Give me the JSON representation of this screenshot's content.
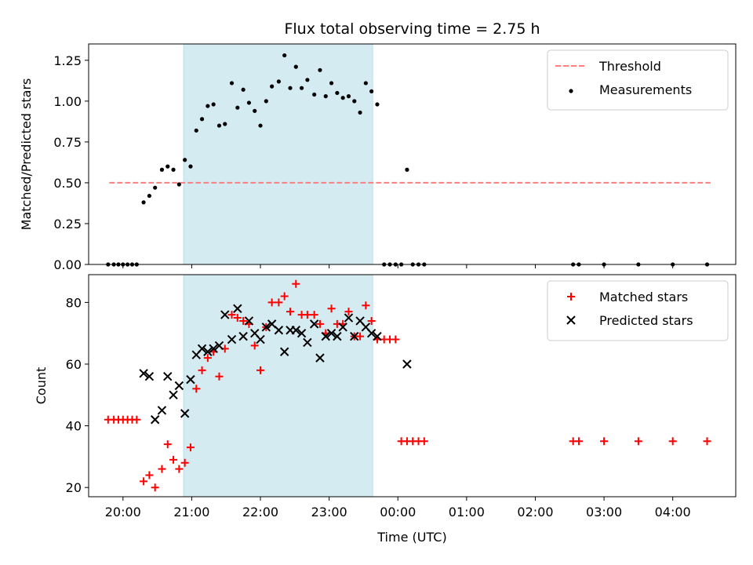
{
  "chart_data": [
    {
      "type": "scatter",
      "title": "Flux total observing time = 2.75 h",
      "ylabel": "Matched/Predicted stars",
      "xlabel": "",
      "xlim": [
        "19:30",
        "04:55"
      ],
      "ylim": [
        0,
        1.35
      ],
      "yticks": [
        "0.00",
        "0.25",
        "0.50",
        "0.75",
        "1.00",
        "1.25"
      ],
      "legend_position": "top-right",
      "shaded_interval": {
        "start": "20:53",
        "end": "23:38",
        "color": "#d4ebf2"
      },
      "threshold": {
        "name": "Threshold",
        "value": 0.5,
        "x_range": [
          "19:48",
          "04:33"
        ],
        "color": "#ff7f7f"
      },
      "series": [
        {
          "name": "Measurements",
          "marker": "dot",
          "color": "#000000",
          "points": [
            [
              "19:47",
              0
            ],
            [
              "19:52",
              0
            ],
            [
              "19:56",
              0
            ],
            [
              "20:00",
              0
            ],
            [
              "20:04",
              0
            ],
            [
              "20:08",
              0
            ],
            [
              "20:12",
              0
            ],
            [
              "20:18",
              0.38
            ],
            [
              "20:23",
              0.42
            ],
            [
              "20:28",
              0.47
            ],
            [
              "20:34",
              0.58
            ],
            [
              "20:39",
              0.6
            ],
            [
              "20:44",
              0.58
            ],
            [
              "20:49",
              0.49
            ],
            [
              "20:54",
              0.64
            ],
            [
              "20:59",
              0.6
            ],
            [
              "21:04",
              0.82
            ],
            [
              "21:09",
              0.89
            ],
            [
              "21:14",
              0.97
            ],
            [
              "21:19",
              0.98
            ],
            [
              "21:24",
              0.85
            ],
            [
              "21:29",
              0.86
            ],
            [
              "21:35",
              1.11
            ],
            [
              "21:40",
              0.96
            ],
            [
              "21:45",
              1.07
            ],
            [
              "21:50",
              0.99
            ],
            [
              "21:55",
              0.94
            ],
            [
              "22:00",
              0.85
            ],
            [
              "22:05",
              1.0
            ],
            [
              "22:10",
              1.09
            ],
            [
              "22:16",
              1.12
            ],
            [
              "22:21",
              1.28
            ],
            [
              "22:26",
              1.08
            ],
            [
              "22:31",
              1.21
            ],
            [
              "22:36",
              1.08
            ],
            [
              "22:41",
              1.13
            ],
            [
              "22:47",
              1.04
            ],
            [
              "22:52",
              1.19
            ],
            [
              "22:57",
              1.03
            ],
            [
              "23:02",
              1.11
            ],
            [
              "23:07",
              1.05
            ],
            [
              "23:12",
              1.02
            ],
            [
              "23:17",
              1.03
            ],
            [
              "23:22",
              1.0
            ],
            [
              "23:27",
              0.93
            ],
            [
              "23:32",
              1.11
            ],
            [
              "23:37",
              1.06
            ],
            [
              "23:42",
              0.98
            ],
            [
              "23:48",
              0
            ],
            [
              "23:53",
              0
            ],
            [
              "23:58",
              0
            ],
            [
              "00:03",
              0
            ],
            [
              "00:08",
              0.58
            ],
            [
              "00:13",
              0
            ],
            [
              "00:18",
              0
            ],
            [
              "00:23",
              0
            ],
            [
              "02:33",
              0
            ],
            [
              "02:38",
              0
            ],
            [
              "03:00",
              0
            ],
            [
              "03:30",
              0
            ],
            [
              "04:00",
              0
            ],
            [
              "04:30",
              0
            ]
          ]
        }
      ]
    },
    {
      "type": "scatter",
      "title": "",
      "ylabel": "Count",
      "xlabel": "Time (UTC)",
      "xlim": [
        "19:30",
        "04:55"
      ],
      "ylim": [
        17,
        89
      ],
      "yticks": [
        "20",
        "40",
        "60",
        "80"
      ],
      "xticks": [
        "20:00",
        "21:00",
        "22:00",
        "23:00",
        "00:00",
        "01:00",
        "02:00",
        "03:00",
        "04:00"
      ],
      "legend_position": "top-right",
      "shaded_interval": {
        "start": "20:53",
        "end": "23:38",
        "color": "#d4ebf2"
      },
      "series": [
        {
          "name": "Matched stars",
          "marker": "plus",
          "color": "#ff0000",
          "points": [
            [
              "19:47",
              42
            ],
            [
              "19:52",
              42
            ],
            [
              "19:56",
              42
            ],
            [
              "20:00",
              42
            ],
            [
              "20:04",
              42
            ],
            [
              "20:08",
              42
            ],
            [
              "20:12",
              42
            ],
            [
              "20:18",
              22
            ],
            [
              "20:23",
              24
            ],
            [
              "20:28",
              20
            ],
            [
              "20:34",
              26
            ],
            [
              "20:39",
              34
            ],
            [
              "20:44",
              29
            ],
            [
              "20:49",
              26
            ],
            [
              "20:54",
              28
            ],
            [
              "20:59",
              33
            ],
            [
              "21:04",
              52
            ],
            [
              "21:09",
              58
            ],
            [
              "21:14",
              62
            ],
            [
              "21:19",
              64
            ],
            [
              "21:24",
              56
            ],
            [
              "21:29",
              65
            ],
            [
              "21:35",
              76
            ],
            [
              "21:40",
              75
            ],
            [
              "21:45",
              74
            ],
            [
              "21:50",
              73
            ],
            [
              "21:55",
              66
            ],
            [
              "22:00",
              58
            ],
            [
              "22:05",
              72
            ],
            [
              "22:10",
              80
            ],
            [
              "22:16",
              80
            ],
            [
              "22:21",
              82
            ],
            [
              "22:26",
              77
            ],
            [
              "22:31",
              86
            ],
            [
              "22:36",
              76
            ],
            [
              "22:41",
              76
            ],
            [
              "22:47",
              76
            ],
            [
              "22:52",
              73
            ],
            [
              "22:57",
              70
            ],
            [
              "23:02",
              78
            ],
            [
              "23:07",
              73
            ],
            [
              "23:12",
              73
            ],
            [
              "23:17",
              77
            ],
            [
              "23:22",
              69
            ],
            [
              "23:27",
              69
            ],
            [
              "23:32",
              79
            ],
            [
              "23:37",
              74
            ],
            [
              "23:42",
              68
            ],
            [
              "23:48",
              68
            ],
            [
              "23:53",
              68
            ],
            [
              "23:58",
              68
            ],
            [
              "00:03",
              35
            ],
            [
              "00:08",
              35
            ],
            [
              "00:13",
              35
            ],
            [
              "00:18",
              35
            ],
            [
              "00:23",
              35
            ],
            [
              "02:33",
              35
            ],
            [
              "02:38",
              35
            ],
            [
              "03:00",
              35
            ],
            [
              "03:30",
              35
            ],
            [
              "04:00",
              35
            ],
            [
              "04:30",
              35
            ]
          ]
        },
        {
          "name": "Predicted stars",
          "marker": "x",
          "color": "#000000",
          "points": [
            [
              "20:18",
              57
            ],
            [
              "20:23",
              56
            ],
            [
              "20:28",
              42
            ],
            [
              "20:34",
              45
            ],
            [
              "20:39",
              56
            ],
            [
              "20:44",
              50
            ],
            [
              "20:49",
              53
            ],
            [
              "20:54",
              44
            ],
            [
              "20:59",
              55
            ],
            [
              "21:04",
              63
            ],
            [
              "21:09",
              65
            ],
            [
              "21:14",
              64
            ],
            [
              "21:19",
              65
            ],
            [
              "21:24",
              66
            ],
            [
              "21:29",
              76
            ],
            [
              "21:35",
              68
            ],
            [
              "21:40",
              78
            ],
            [
              "21:45",
              69
            ],
            [
              "21:50",
              74
            ],
            [
              "21:55",
              70
            ],
            [
              "22:00",
              68
            ],
            [
              "22:05",
              72
            ],
            [
              "22:10",
              73
            ],
            [
              "22:16",
              71
            ],
            [
              "22:21",
              64
            ],
            [
              "22:26",
              71
            ],
            [
              "22:31",
              71
            ],
            [
              "22:36",
              70
            ],
            [
              "22:41",
              67
            ],
            [
              "22:47",
              73
            ],
            [
              "22:52",
              62
            ],
            [
              "22:57",
              69
            ],
            [
              "23:02",
              70
            ],
            [
              "23:07",
              69
            ],
            [
              "23:12",
              72
            ],
            [
              "23:17",
              75
            ],
            [
              "23:22",
              69
            ],
            [
              "23:27",
              74
            ],
            [
              "23:32",
              72
            ],
            [
              "23:37",
              70
            ],
            [
              "23:42",
              69
            ],
            [
              "00:08",
              60
            ]
          ]
        }
      ]
    }
  ]
}
